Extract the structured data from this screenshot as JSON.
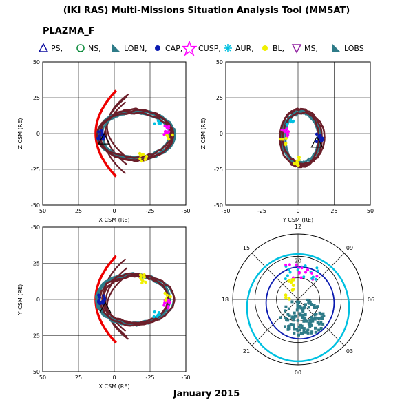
{
  "title": "(IKI RAS) Multi-Missions Situation Analysis Tool (MMSAT)",
  "mission": "PLAZMA_F",
  "date": "January 2015",
  "legend": [
    {
      "label": "PS,",
      "icon": "triangle-open-icon",
      "color": "#1010a0"
    },
    {
      "label": "NS,",
      "icon": "circle-open-icon",
      "color": "#0a8a3a"
    },
    {
      "label": "LOBN,",
      "icon": "wedge-filled-icon",
      "color": "#2e7b88"
    },
    {
      "label": "CAP,",
      "icon": "dot-filled-icon",
      "color": "#0a1ab0"
    },
    {
      "label": "CUSP,",
      "icon": "star-open-icon",
      "color": "#ff00ff"
    },
    {
      "label": "AUR,",
      "icon": "asterisk-icon",
      "color": "#00c0e0"
    },
    {
      "label": "BL,",
      "icon": "dot-filled-icon",
      "color": "#f0f000"
    },
    {
      "label": "MS,",
      "icon": "triangle-down-open-icon",
      "color": "#9020a0"
    },
    {
      "label": "LOBS",
      "icon": "wedge-filled-icon",
      "color": "#2e7b88"
    }
  ],
  "colors": {
    "bowshock": "#ee0000",
    "magnetosheath": "#6b1f2a",
    "lobe": "#2e7b88",
    "cap": "#0a1ab0",
    "cusp": "#ff00ff",
    "aurora": "#00c0e0",
    "boundary_layer": "#f0f000",
    "plasma_sheet": "#1010a0"
  },
  "chart_data": [
    {
      "type": "scatter",
      "panel": "x-z",
      "xlabel": "X CSM (RE)",
      "ylabel": "Z CSM (RE)",
      "xlim": [
        50,
        -50
      ],
      "ylim": [
        -50,
        50
      ],
      "xticks": [
        50,
        25,
        0,
        -25,
        -50
      ],
      "yticks": [
        50,
        25,
        0,
        -25,
        -50
      ],
      "xtick_labels": [
        "50",
        "25",
        "0",
        "-25",
        "-50"
      ],
      "ytick_labels": [
        "50",
        "25",
        "0",
        "-25",
        "-50"
      ],
      "grid": true,
      "bow_shock": {
        "nose_x": 13,
        "extent": 30
      },
      "orbit": {
        "center": [
          -15,
          -1
        ],
        "rx": 26,
        "ry": 17
      }
    },
    {
      "type": "scatter",
      "panel": "y-z",
      "xlabel": "Y CSM (RE)",
      "ylabel": "Z CSM (RE)",
      "xlim": [
        -50,
        50
      ],
      "ylim": [
        -50,
        50
      ],
      "xticks": [
        -50,
        -25,
        0,
        25,
        50
      ],
      "yticks": [
        50,
        25,
        0,
        -25,
        -50
      ],
      "xtick_labels": [
        "-50",
        "-25",
        "0",
        "25",
        "50"
      ],
      "ytick_labels": [
        "50",
        "25",
        "0",
        "-25",
        "-50"
      ],
      "grid": true,
      "orbit": {
        "center": [
          2,
          -3
        ],
        "rx": 13,
        "ry": 18
      }
    },
    {
      "type": "scatter",
      "panel": "x-y",
      "xlabel": "X CSM (RE)",
      "ylabel": "Y CSM (RE)",
      "xlim": [
        50,
        -50
      ],
      "ylim": [
        50,
        -50
      ],
      "xticks": [
        50,
        25,
        0,
        -25,
        -50
      ],
      "yticks": [
        -50,
        -25,
        0,
        25,
        50
      ],
      "xtick_labels": [
        "50",
        "25",
        "0",
        "-25",
        "-50"
      ],
      "ytick_labels": [
        "-50",
        "-25",
        "0",
        "25",
        "50"
      ],
      "grid": true,
      "bow_shock": {
        "nose_x": 13,
        "extent": 30
      },
      "orbit": {
        "center": [
          -15,
          0
        ],
        "rx": 25,
        "ry": 16
      }
    },
    {
      "type": "polar",
      "panel": "mlt-invariant-latitude",
      "mlt_labels": [
        "12",
        "09",
        "06",
        "03",
        "00",
        "21",
        "18",
        "15"
      ],
      "inner_label": "20",
      "rings": 3
    }
  ]
}
